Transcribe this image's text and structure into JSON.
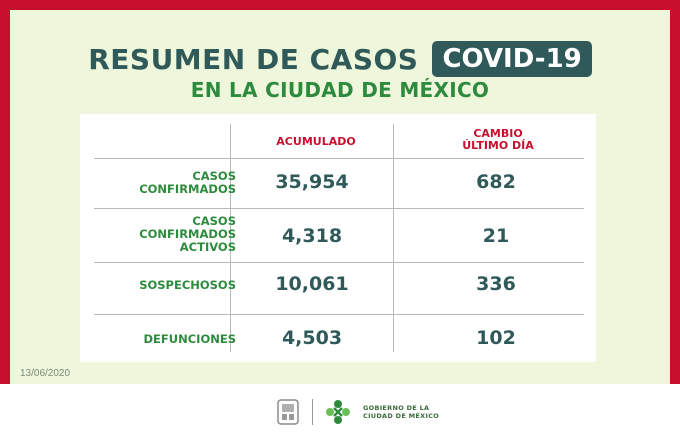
{
  "header": {
    "title": "RESUMEN DE CASOS",
    "badge": "COVID-19",
    "subtitle": "EN LA CIUDAD DE MÉXICO"
  },
  "table": {
    "columns": [
      "ACUMULADO",
      "CAMBIO",
      "ÚLTIMO DÍA"
    ],
    "rows": [
      {
        "label_lines": [
          "CASOS",
          "CONFIRMADOS"
        ],
        "acumulado": "35,954",
        "cambio": "682"
      },
      {
        "label_lines": [
          "CASOS",
          "CONFIRMADOS",
          "ACTIVOS"
        ],
        "acumulado": "4,318",
        "cambio": "21"
      },
      {
        "label_lines": [
          "SOSPECHOSOS"
        ],
        "acumulado": "10,061",
        "cambio": "336"
      },
      {
        "label_lines": [
          "DEFUNCIONES"
        ],
        "acumulado": "4,503",
        "cambio": "102"
      }
    ]
  },
  "date": "13/06/2020",
  "footer": {
    "gov_lines": [
      "GOBIERNO DE LA",
      "CIUDAD DE MÉXICO"
    ]
  },
  "colors": {
    "frame": "#c8102e",
    "panel": "#eef7dc",
    "dark_teal": "#2f5a59",
    "green": "#2e8b3e",
    "red": "#c8102e"
  }
}
